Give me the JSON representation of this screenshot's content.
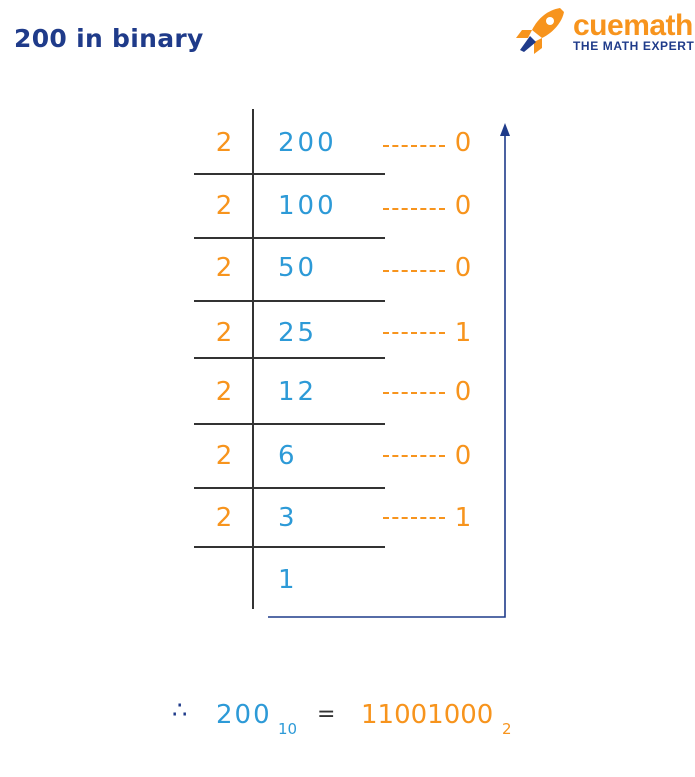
{
  "title": "200 in binary",
  "brand": {
    "name": "cuemath",
    "tagline": "THE MATH EXPERT"
  },
  "colors": {
    "divisor": "#f7941d",
    "quotient": "#2d9ad7",
    "title": "#1f3b8a",
    "line": "#333333"
  },
  "divisor": "2",
  "rows": [
    {
      "quotient": "200",
      "remainder": "0"
    },
    {
      "quotient": "100",
      "remainder": "0"
    },
    {
      "quotient": "50",
      "remainder": "0"
    },
    {
      "quotient": "25",
      "remainder": "1"
    },
    {
      "quotient": "12",
      "remainder": "0"
    },
    {
      "quotient": "6",
      "remainder": "0"
    },
    {
      "quotient": "3",
      "remainder": "1"
    }
  ],
  "final_quotient": "1",
  "result": {
    "therefore": "∴",
    "decimal": "200",
    "decimal_base": "10",
    "equals": "=",
    "binary": "11001000",
    "binary_base": "2"
  }
}
